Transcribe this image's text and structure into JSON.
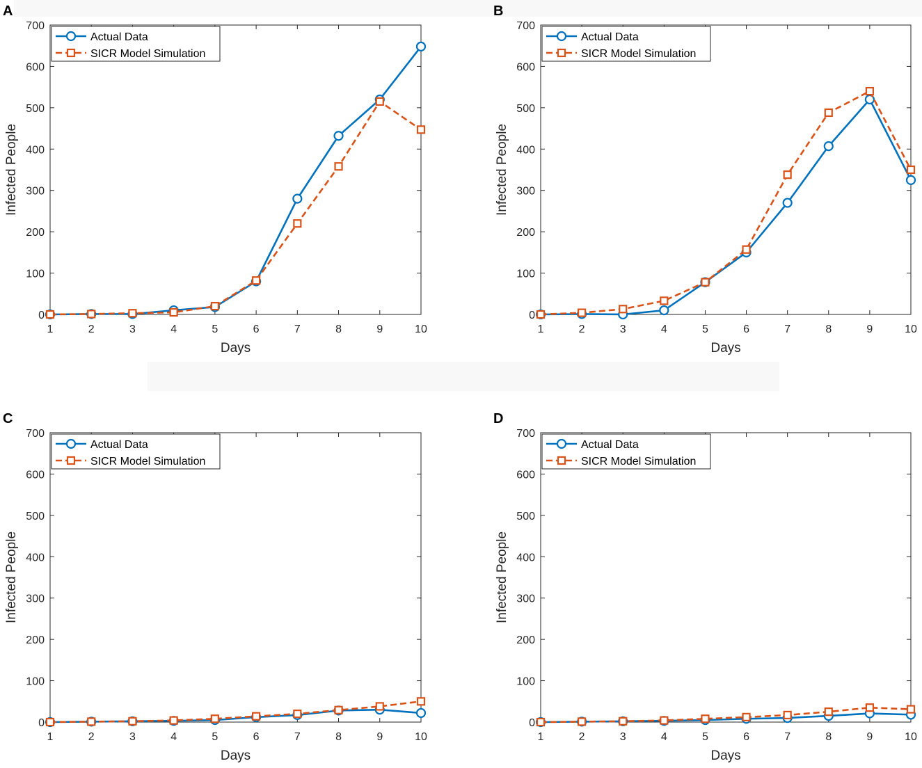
{
  "chart_data": [
    {
      "type": "line",
      "panel_label": "A",
      "x": [
        1,
        2,
        3,
        4,
        5,
        6,
        7,
        8,
        9,
        10
      ],
      "xlabel": "Days",
      "ylabel": "Infected People",
      "xlim": [
        1,
        10
      ],
      "ylim": [
        0,
        700
      ],
      "xticks": [
        "1",
        "2",
        "3",
        "4",
        "5",
        "6",
        "7",
        "8",
        "9",
        "10"
      ],
      "yticks": [
        "0",
        "100",
        "200",
        "300",
        "400",
        "500",
        "600",
        "700"
      ],
      "legend": "top-left",
      "series": [
        {
          "name": "Actual Data",
          "marker": "circle",
          "line": "solid",
          "color": "#0072BD",
          "values": [
            0,
            1,
            1,
            10,
            18,
            80,
            280,
            432,
            520,
            648
          ]
        },
        {
          "name": "SICR Model Simulation",
          "marker": "square",
          "line": "dashed",
          "color": "#D95319",
          "values": [
            0,
            1,
            3,
            5,
            20,
            82,
            220,
            358,
            515,
            447
          ]
        }
      ]
    },
    {
      "type": "line",
      "panel_label": "B",
      "x": [
        1,
        2,
        3,
        4,
        5,
        6,
        7,
        8,
        9,
        10
      ],
      "xlabel": "Days",
      "ylabel": "Infected People",
      "xlim": [
        1,
        10
      ],
      "ylim": [
        0,
        700
      ],
      "xticks": [
        "1",
        "2",
        "3",
        "4",
        "5",
        "6",
        "7",
        "8",
        "9",
        "10"
      ],
      "yticks": [
        "0",
        "100",
        "200",
        "300",
        "400",
        "500",
        "600",
        "700"
      ],
      "legend": "top-left",
      "series": [
        {
          "name": "Actual Data",
          "marker": "circle",
          "line": "solid",
          "color": "#0072BD",
          "values": [
            0,
            1,
            0,
            10,
            78,
            150,
            270,
            407,
            520,
            325
          ]
        },
        {
          "name": "SICR Model Simulation",
          "marker": "square",
          "line": "dashed",
          "color": "#D95319",
          "values": [
            0,
            4,
            13,
            33,
            78,
            157,
            338,
            488,
            540,
            350
          ]
        }
      ]
    },
    {
      "type": "line",
      "panel_label": "C",
      "x": [
        1,
        2,
        3,
        4,
        5,
        6,
        7,
        8,
        9,
        10
      ],
      "xlabel": "Days",
      "ylabel": "Infected People",
      "xlim": [
        1,
        10
      ],
      "ylim": [
        0,
        700
      ],
      "xticks": [
        "1",
        "2",
        "3",
        "4",
        "5",
        "6",
        "7",
        "8",
        "9",
        "10"
      ],
      "yticks": [
        "0",
        "100",
        "200",
        "300",
        "400",
        "500",
        "600",
        "700"
      ],
      "legend": "top-left",
      "series": [
        {
          "name": "Actual Data",
          "marker": "circle",
          "line": "solid",
          "color": "#0072BD",
          "values": [
            0,
            1,
            2,
            3,
            5,
            12,
            17,
            28,
            30,
            22
          ]
        },
        {
          "name": "SICR Model Simulation",
          "marker": "square",
          "line": "dashed",
          "color": "#D95319",
          "values": [
            0,
            1,
            2,
            4,
            8,
            14,
            20,
            29,
            38,
            50
          ]
        }
      ]
    },
    {
      "type": "line",
      "panel_label": "D",
      "x": [
        1,
        2,
        3,
        4,
        5,
        6,
        7,
        8,
        9,
        10
      ],
      "xlabel": "Days",
      "ylabel": "Infected People",
      "xlim": [
        1,
        10
      ],
      "ylim": [
        0,
        700
      ],
      "xticks": [
        "1",
        "2",
        "3",
        "4",
        "5",
        "6",
        "7",
        "8",
        "9",
        "10"
      ],
      "yticks": [
        "0",
        "100",
        "200",
        "300",
        "400",
        "500",
        "600",
        "700"
      ],
      "legend": "top-left",
      "series": [
        {
          "name": "Actual Data",
          "marker": "circle",
          "line": "solid",
          "color": "#0072BD",
          "values": [
            0,
            1,
            2,
            3,
            5,
            8,
            10,
            15,
            21,
            18
          ]
        },
        {
          "name": "SICR Model Simulation",
          "marker": "square",
          "line": "dashed",
          "color": "#D95319",
          "values": [
            0,
            1,
            2,
            4,
            8,
            12,
            17,
            25,
            35,
            31
          ]
        }
      ]
    }
  ]
}
